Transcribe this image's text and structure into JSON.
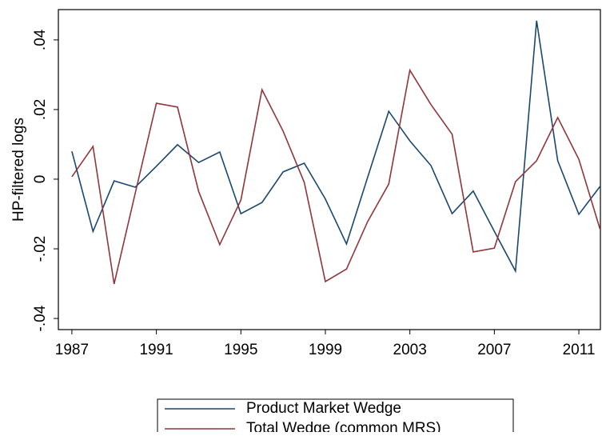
{
  "chart_data": {
    "type": "line",
    "y_label": "HP-filtered logs",
    "x": [
      1987,
      1988,
      1989,
      1990,
      1991,
      1992,
      1993,
      1994,
      1995,
      1996,
      1997,
      1998,
      1999,
      2000,
      2001,
      2002,
      2003,
      2004,
      2005,
      2006,
      2007,
      2008,
      2009,
      2010,
      2011,
      2012
    ],
    "series": [
      {
        "name": "Product Market Wedge",
        "color": "#1a476f",
        "values": [
          0.008,
          -0.015,
          -0.0005,
          -0.0023,
          0.0037,
          0.0099,
          0.0048,
          0.0078,
          -0.0099,
          -0.0067,
          0.0021,
          0.0046,
          -0.0057,
          -0.0186,
          0.0005,
          0.0195,
          0.011,
          0.0039,
          -0.0099,
          -0.0034,
          -0.015,
          -0.0264,
          0.0455,
          0.0053,
          -0.0101,
          -0.0021
        ]
      },
      {
        "name": "Total Wedge (common MRS)",
        "color": "#90353b",
        "values": [
          0.0007,
          0.0094,
          -0.0301,
          -0.004,
          0.0218,
          0.0207,
          -0.0035,
          -0.0188,
          -0.006,
          0.0257,
          0.0138,
          -0.0009,
          -0.0294,
          -0.0258,
          -0.0122,
          -0.0014,
          0.0313,
          0.0214,
          0.0129,
          -0.0209,
          -0.0198,
          -0.0007,
          0.0053,
          0.0177,
          0.0057,
          -0.0143
        ]
      }
    ],
    "xlim": [
      1986.36,
      2012.02
    ],
    "xticks": [
      1987,
      1991,
      1995,
      1999,
      2003,
      2007,
      2011
    ],
    "ylim": [
      -0.0432,
      0.0487
    ],
    "yticks": [
      {
        "value": -0.04,
        "label": "-.04"
      },
      {
        "value": -0.02,
        "label": "-.02"
      },
      {
        "value": 0,
        "label": "0"
      },
      {
        "value": 0.02,
        "label": ".02"
      },
      {
        "value": 0.04,
        "label": ".04"
      }
    ],
    "legend": "bottom"
  }
}
